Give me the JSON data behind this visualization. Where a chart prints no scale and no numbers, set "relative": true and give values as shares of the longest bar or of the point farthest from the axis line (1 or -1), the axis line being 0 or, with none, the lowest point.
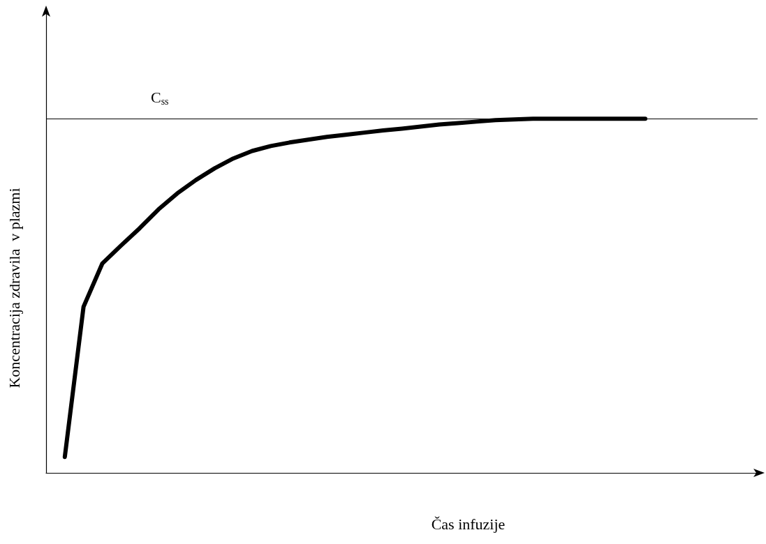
{
  "chart_data": {
    "type": "line",
    "relative": true,
    "xlabel": "Čas infuzije",
    "ylabel": "Koncentracija zdravila  v plazmi",
    "categories": [
      null,
      null,
      null,
      null,
      null,
      null,
      null,
      null,
      null,
      null,
      null,
      null,
      null,
      null,
      null,
      null,
      null,
      null,
      null,
      null,
      null,
      null,
      null,
      null,
      null,
      null,
      null,
      null,
      null,
      null,
      null,
      null,
      null,
      null,
      null,
      null,
      null,
      null,
      null
    ],
    "series": [
      {
        "color": "#000000",
        "values": [
          null,
          0.045,
          0.469,
          0.591,
          0.642,
          0.691,
          0.744,
          0.789,
          0.827,
          0.86,
          0.888,
          0.909,
          0.923,
          0.933,
          0.941,
          0.949,
          0.955,
          0.961,
          0.967,
          0.972,
          0.978,
          0.984,
          0.988,
          0.992,
          0.996,
          0.998,
          1,
          1,
          1,
          1,
          1,
          1,
          1,
          null,
          null,
          null,
          null,
          null,
          null
        ]
      }
    ],
    "ref_lines": [
      {
        "axis": "y",
        "value": 1,
        "label": "C$_{ss}$",
        "color": "#000000"
      }
    ],
    "grid": false,
    "marker": "none",
    "line_style": "solid"
  }
}
